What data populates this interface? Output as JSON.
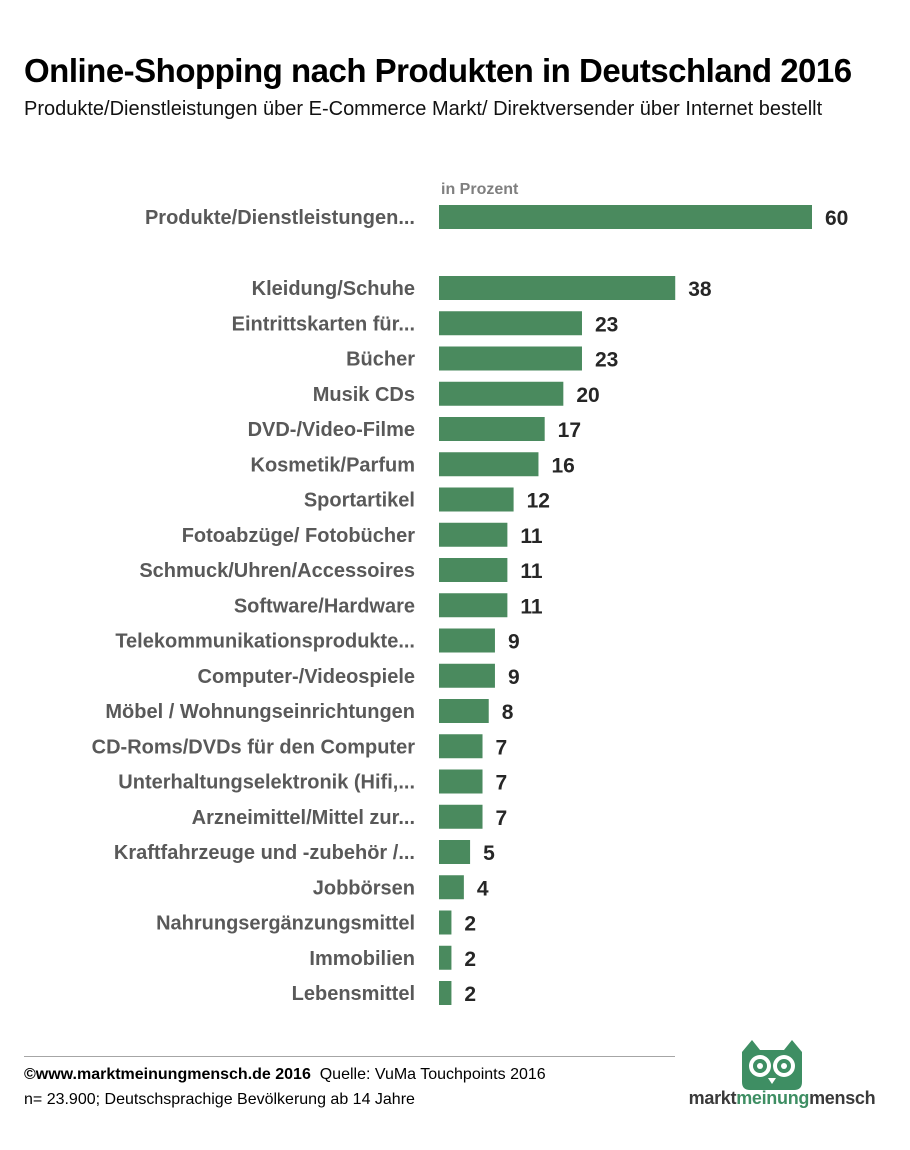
{
  "title": "Online-Shopping nach Produkten in Deutschland 2016",
  "subtitle": "Produkte/Dienstleistungen über E-Commerce Markt/ Direktversender über Internet bestellt",
  "unit_label": "in Prozent",
  "colors": {
    "bar": "#4a8a5e",
    "label": "#595959",
    "value": "#262626",
    "logo_green": "#3e8e63"
  },
  "chart_data": {
    "type": "bar",
    "orientation": "horizontal",
    "categories": [
      "Produkte/Dienstleistungen...",
      "Kleidung/Schuhe",
      "Eintrittskarten für...",
      "Bücher",
      "Musik CDs",
      "DVD-/Video-Filme",
      "Kosmetik/Parfum",
      "Sportartikel",
      "Fotoabzüge/ Fotobücher",
      "Schmuck/Uhren/Accessoires",
      "Software/Hardware",
      "Telekommunikationsprodukte...",
      "Computer-/Videospiele",
      "Möbel / Wohnungseinrichtungen",
      "CD-Roms/DVDs für den Computer",
      "Unterhaltungselektronik (Hifi,...",
      "Arzneimittel/Mittel zur...",
      "Kraftfahrzeuge und -zubehör /...",
      "Jobbörsen",
      "Nahrungsergänzungsmittel",
      "Immobilien",
      "Lebensmittel"
    ],
    "values": [
      60,
      38,
      23,
      23,
      20,
      17,
      16,
      12,
      11,
      11,
      11,
      9,
      9,
      8,
      7,
      7,
      7,
      5,
      4,
      2,
      2,
      2
    ],
    "xlim": [
      0,
      60
    ],
    "unit": "in Prozent",
    "grid": false,
    "legend": "none"
  },
  "footer": {
    "copyright": "©www.marktmeinungmensch.de 2016",
    "source": "Quelle: VuMa Touchpoints 2016",
    "note": "n= 23.900; Deutschsprachige Bevölkerung ab 14 Jahre"
  },
  "logo": {
    "part1": "markt",
    "part2": "meinung",
    "part3": "mensch"
  }
}
